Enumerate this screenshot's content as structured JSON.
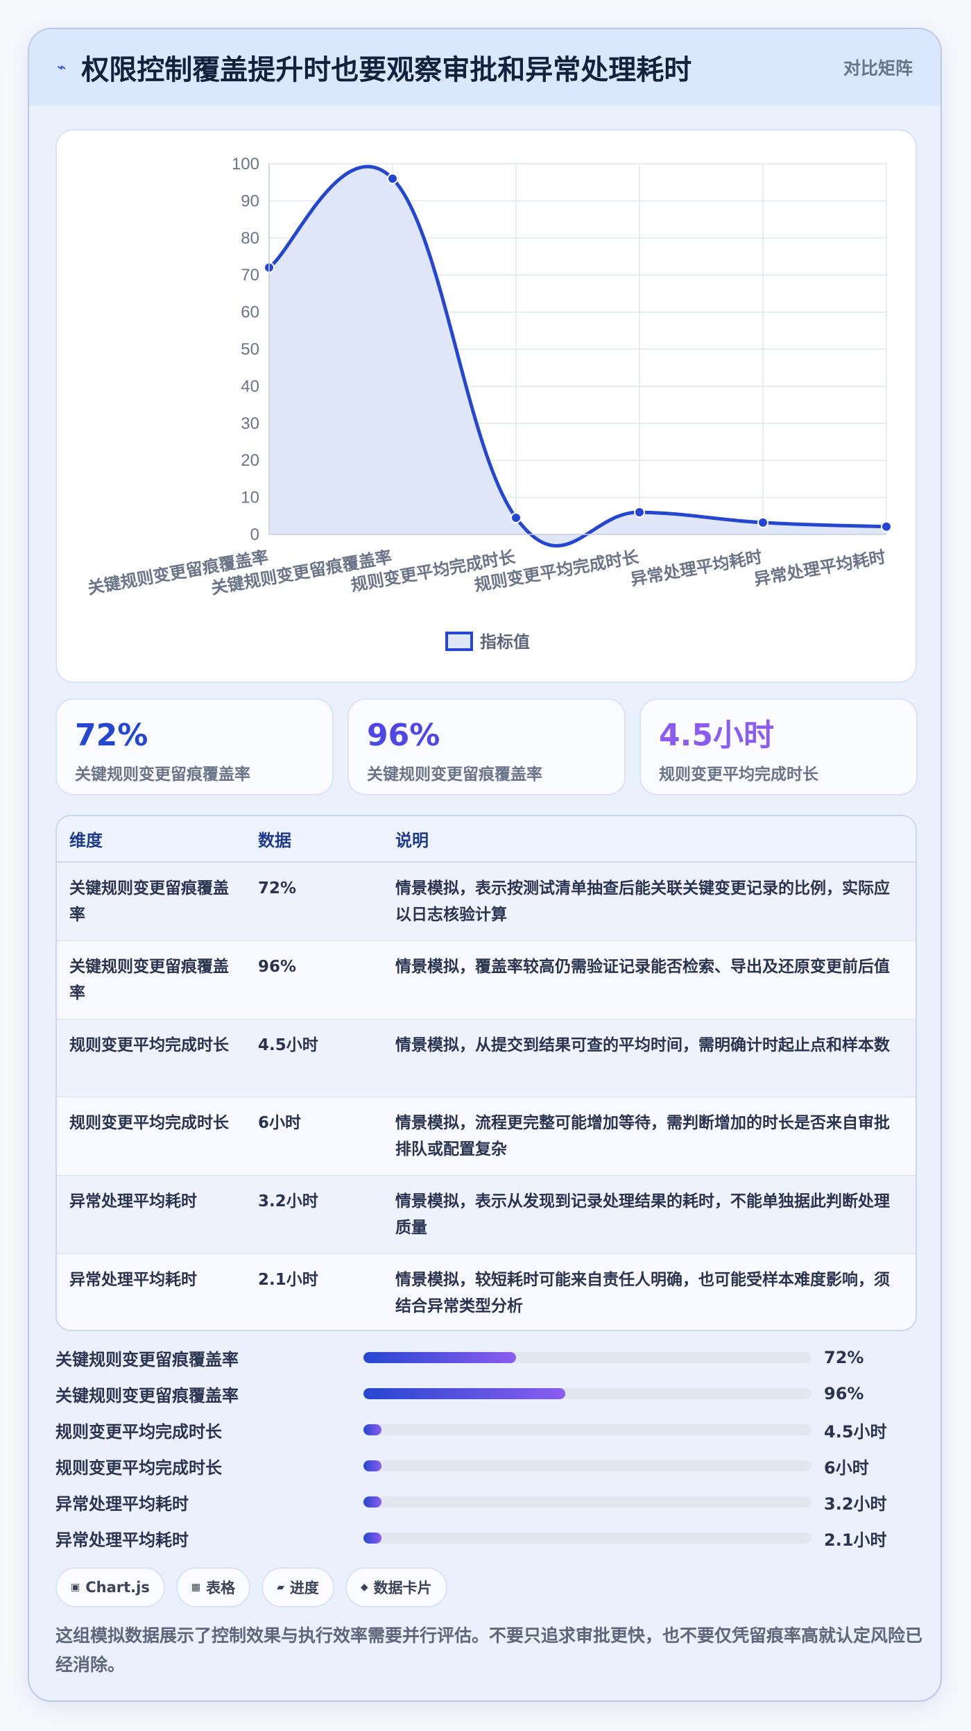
{
  "header": {
    "title": "权限控制覆盖提升时也要观察审批和异常处理耗时",
    "tag": "对比矩阵"
  },
  "colors": {
    "accent": "#2547d0",
    "purple": "#8b5cf0",
    "fill": "#dfe6f8"
  },
  "chart_data": {
    "type": "line",
    "categories": [
      "关键规则变更留痕覆盖率",
      "关键规则变更留痕覆盖率",
      "规则变更平均完成时长",
      "规则变更平均完成时长",
      "异常处理平均耗时",
      "异常处理平均耗时"
    ],
    "series": [
      {
        "name": "指标值",
        "values": [
          72,
          96,
          4.5,
          6,
          3.2,
          2.1
        ]
      }
    ],
    "ylim": [
      0,
      100
    ],
    "yticks": [
      0,
      10,
      20,
      30,
      40,
      50,
      60,
      70,
      80,
      90,
      100
    ],
    "grid": true,
    "legend": "bottom",
    "fill": true,
    "smooth": true
  },
  "stats": [
    {
      "value": "72%",
      "label": "关键规则变更留痕覆盖率",
      "color": "#2547d0"
    },
    {
      "value": "96%",
      "label": "关键规则变更留痕覆盖率",
      "color": "#4f46e5"
    },
    {
      "value": "4.5小时",
      "label": "规则变更平均完成时长",
      "color": "#8b5cf0"
    }
  ],
  "table": {
    "headers": [
      "维度",
      "数据",
      "说明"
    ],
    "rows": [
      [
        "关键规则变更留痕覆盖率",
        "72%",
        "情景模拟，表示按测试清单抽查后能关联关键变更记录的比例，实际应以日志核验计算"
      ],
      [
        "关键规则变更留痕覆盖率",
        "96%",
        "情景模拟，覆盖率较高仍需验证记录能否检索、导出及还原变更前后值"
      ],
      [
        "规则变更平均完成时长",
        "4.5小时",
        "情景模拟，从提交到结果可查的平均时间，需明确计时起止点和样本数"
      ],
      [
        "规则变更平均完成时长",
        "6小时",
        "情景模拟，流程更完整可能增加等待，需判断增加的时长是否来自审批排队或配置复杂"
      ],
      [
        "异常处理平均耗时",
        "3.2小时",
        "情景模拟，表示从发现到记录处理结果的耗时，不能单独据此判断处理质量"
      ],
      [
        "异常处理平均耗时",
        "2.1小时",
        "情景模拟，较短耗时可能来自责任人明确，也可能受样本难度影响，须结合异常类型分析"
      ]
    ]
  },
  "progress": [
    {
      "label": "关键规则变更留痕覆盖率",
      "value": "72%",
      "fraction": 0.34
    },
    {
      "label": "关键规则变更留痕覆盖率",
      "value": "96%",
      "fraction": 0.45
    },
    {
      "label": "规则变更平均完成时长",
      "value": "4.5小时",
      "fraction": 0.04
    },
    {
      "label": "规则变更平均完成时长",
      "value": "6小时",
      "fraction": 0.04
    },
    {
      "label": "异常处理平均耗时",
      "value": "3.2小时",
      "fraction": 0.04
    },
    {
      "label": "异常处理平均耗时",
      "value": "2.1小时",
      "fraction": 0.04
    }
  ],
  "chips": [
    {
      "icon": "▣",
      "label": "Chart.js"
    },
    {
      "icon": "▦",
      "label": "表格"
    },
    {
      "icon": "▰",
      "label": "进度"
    },
    {
      "icon": "◆",
      "label": "数据卡片"
    }
  ],
  "footer": "这组模拟数据展示了控制效果与执行效率需要并行评估。不要只追求审批更快，也不要仅凭留痕率高就认定风险已经消除。"
}
